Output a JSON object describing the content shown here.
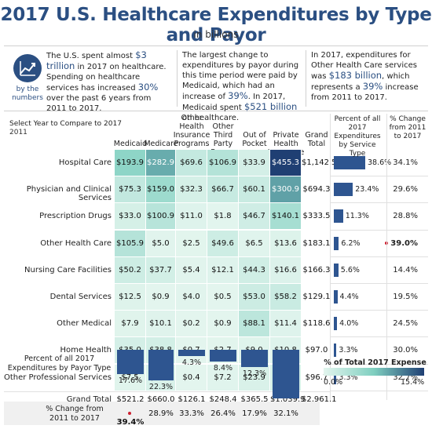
{
  "header": {
    "title": "2017 U.S. Healthcare Expenditures by Type and Payor",
    "subtitle": "in billions"
  },
  "icon": {
    "name": "trend-chart-icon",
    "label": "by the numbers"
  },
  "callouts": [
    {
      "pre": "The U.S. spent almost ",
      "hl1": "$3 trillion",
      "mid": " in 2017 on healthcare. Spending on healthcare services has increased ",
      "hl2": "30%",
      "post": " over the past 6 years from 2011 to 2017."
    },
    {
      "pre": "The largest change to expenditures by payor during this time period were paid by Medicaid, which had an increase of ",
      "hl1": "39%",
      "mid": ". In 2017, Medicaid spent ",
      "hl2": "$521 billion",
      "post": " on healthcare."
    },
    {
      "pre": "In 2017, expenditures for Other Health Care services was ",
      "hl1": "$183 billion",
      "mid": ", which represents a ",
      "hl2": "39%",
      "post": " increase from 2011 to 2017."
    }
  ],
  "controls": {
    "select_label": "Select Year to Compare to 2017",
    "year_value": "2011"
  },
  "legend": {
    "title": "% of Total 2017 Expense",
    "min_label": "0.0%",
    "max_label": "15.4%",
    "color_low": "#e3f5ee",
    "color_mid": "#7fcfc0",
    "color_high": "#1f3f73"
  },
  "chart_data": {
    "type": "heatmap",
    "columns": [
      "Medicaid",
      "Medicare",
      "Other Health Insurance Programs",
      "Other Third Party Payers",
      "Out of Pocket",
      "Private Health Insurance",
      "Grand Total"
    ],
    "rows": [
      "Hospital Care",
      "Physician and Clinical Services",
      "Prescription Drugs",
      "Other Health Care",
      "Nursing Care Facilities",
      "Dental Services",
      "Other Medical",
      "Home Health",
      "Other Professional Services"
    ],
    "values": [
      [
        "$193.9",
        "$282.9",
        "$69.6",
        "$106.9",
        "$33.9",
        "$455.3",
        "$1,142.5"
      ],
      [
        "$75.3",
        "$159.0",
        "$32.3",
        "$66.7",
        "$60.1",
        "$300.9",
        "$694.3"
      ],
      [
        "$33.0",
        "$100.9",
        "$11.0",
        "$1.8",
        "$46.7",
        "$140.1",
        "$333.5"
      ],
      [
        "$105.9",
        "$5.0",
        "$2.5",
        "$49.6",
        "$6.5",
        "$13.6",
        "$183.1"
      ],
      [
        "$50.2",
        "$37.7",
        "$5.4",
        "$12.1",
        "$44.3",
        "$16.6",
        "$166.3"
      ],
      [
        "$12.5",
        "$0.9",
        "$4.0",
        "$0.5",
        "$53.0",
        "$58.2",
        "$129.1"
      ],
      [
        "$7.9",
        "$10.1",
        "$0.2",
        "$0.9",
        "$88.1",
        "$11.4",
        "$118.6"
      ],
      [
        "$35.0",
        "$38.8",
        "$0.7",
        "$2.7",
        "$9.0",
        "$10.8",
        "$97.0"
      ],
      [
        "$7.5",
        "$24.7",
        "$0.4",
        "$7.2",
        "$23.9",
        "$33.0",
        "$96.7"
      ]
    ],
    "grand_total_label": "Grand Total",
    "grand_total": [
      "$521.2",
      "$660.0",
      "$126.1",
      "$248.4",
      "$365.5",
      "$1,039.9",
      "$2,961.1"
    ],
    "by_type_header": "Percent of all 2017 Expenditures by Service Type",
    "by_type_pct": [
      38.6,
      23.4,
      11.3,
      6.2,
      5.6,
      4.4,
      4.0,
      3.3,
      3.3
    ],
    "by_type_labels": [
      "38.6%",
      "23.4%",
      "11.3%",
      "6.2%",
      "5.6%",
      "4.4%",
      "4.0%",
      "3.3%",
      "3.3%"
    ],
    "change_header": "% Change from 2011 to 2017",
    "change_by_type": [
      "34.1%",
      "29.6%",
      "28.8%",
      "39.0%",
      "14.4%",
      "19.5%",
      "24.5%",
      "30.0%",
      "32.7%"
    ],
    "change_by_type_highlight": [
      false,
      false,
      false,
      true,
      false,
      false,
      false,
      false,
      false
    ],
    "by_payor_label": "Percent of all 2017 Expenditures by Payor Type",
    "by_payor_pct": [
      17.6,
      22.3,
      4.3,
      8.4,
      12.3,
      35.1
    ],
    "by_payor_labels": [
      "17.6%",
      "22.3%",
      "4.3%",
      "8.4%",
      "12.3%",
      "35.1%"
    ],
    "change_by_payor_label": "% Change from 2011 to 2017",
    "change_by_payor": [
      "39.4%",
      "28.9%",
      "33.3%",
      "26.4%",
      "17.9%",
      "32.1%"
    ],
    "change_by_payor_highlight": [
      true,
      false,
      false,
      false,
      false,
      false
    ]
  }
}
